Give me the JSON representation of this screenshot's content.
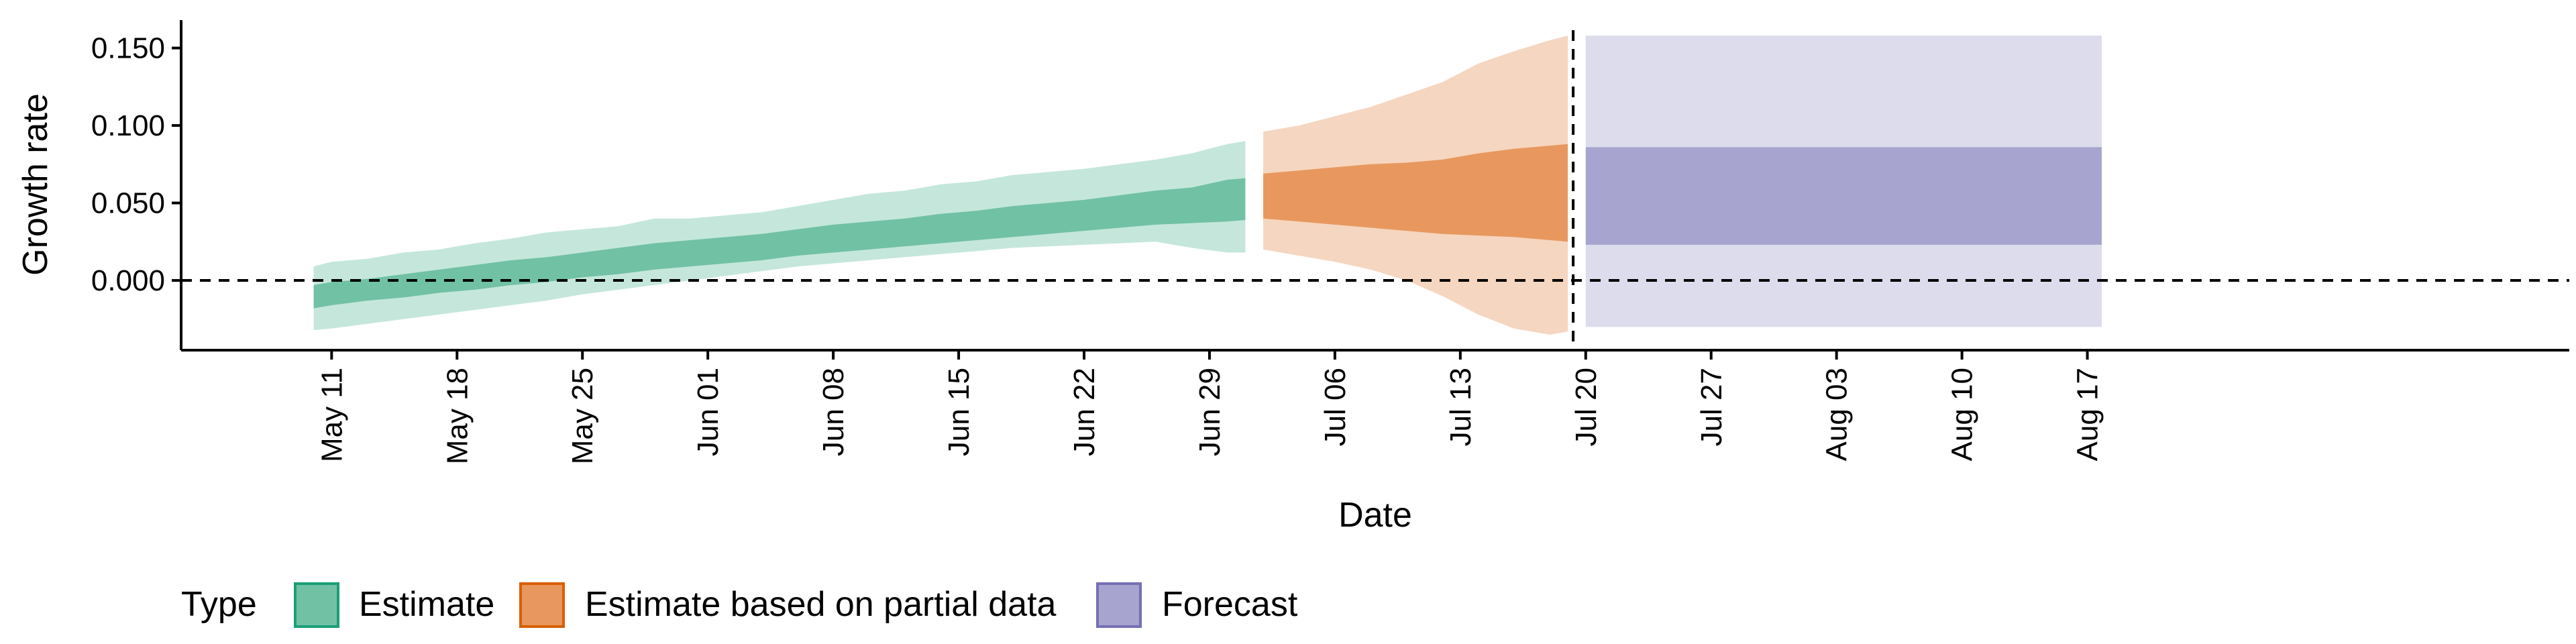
{
  "chart_data": {
    "type": "area",
    "title": "",
    "xlabel": "Date",
    "ylabel": "Growth rate",
    "ylim": [
      -0.045,
      0.168
    ],
    "yticks": [
      0.0,
      0.05,
      0.1,
      0.15
    ],
    "ytick_labels": [
      "0.000",
      "0.050",
      "0.100",
      "0.150"
    ],
    "xlim_days": [
      -8.4,
      124.9
    ],
    "x_origin": "May 11",
    "xticks_days": [
      0,
      7,
      14,
      21,
      28,
      35,
      42,
      49,
      56,
      63,
      70,
      77,
      84,
      91,
      98
    ],
    "xtick_labels": [
      "May 11",
      "May 18",
      "May 25",
      "Jun 01",
      "Jun 08",
      "Jun 15",
      "Jun 22",
      "Jun 29",
      "Jul 06",
      "Jul 13",
      "Jul 20",
      "Jul 27",
      "Aug 03",
      "Aug 10",
      "Aug 17"
    ],
    "reference_lines": {
      "horizontal_y": 0.0,
      "vertical_day": 69.3
    },
    "legend": {
      "title": "Type",
      "position": "bottom-left",
      "entries": [
        {
          "label": "Estimate",
          "fill": "#71c1a5",
          "stroke": "#1b9e77"
        },
        {
          "label": "Estimate based on partial data",
          "fill": "#e8985e",
          "stroke": "#d95f02"
        },
        {
          "label": "Forecast",
          "fill": "#a8a4d0",
          "stroke": "#7570b3"
        }
      ]
    },
    "series": [
      {
        "name": "Estimate",
        "color": "#1b9e77",
        "inner_fill": "#71c1a5",
        "outer_fill": "#c5e7db",
        "x_days": [
          -1,
          0,
          2,
          4,
          6,
          8,
          10,
          12,
          14,
          16,
          18,
          20,
          22,
          24,
          26,
          28,
          30,
          32,
          34,
          36,
          38,
          40,
          42,
          44,
          46,
          48,
          50,
          51
        ],
        "outer_upper": [
          0.009,
          0.012,
          0.014,
          0.018,
          0.02,
          0.024,
          0.027,
          0.031,
          0.033,
          0.035,
          0.04,
          0.04,
          0.042,
          0.044,
          0.048,
          0.052,
          0.056,
          0.058,
          0.062,
          0.064,
          0.068,
          0.07,
          0.072,
          0.075,
          0.078,
          0.082,
          0.088,
          0.09
        ],
        "inner_upper": [
          -0.003,
          -0.001,
          0.001,
          0.004,
          0.007,
          0.01,
          0.013,
          0.015,
          0.018,
          0.021,
          0.024,
          0.026,
          0.028,
          0.03,
          0.033,
          0.036,
          0.038,
          0.04,
          0.043,
          0.045,
          0.048,
          0.05,
          0.052,
          0.055,
          0.058,
          0.06,
          0.065,
          0.066
        ],
        "inner_lower": [
          -0.018,
          -0.016,
          -0.013,
          -0.011,
          -0.008,
          -0.006,
          -0.003,
          -0.001,
          0.002,
          0.004,
          0.007,
          0.009,
          0.011,
          0.013,
          0.016,
          0.018,
          0.02,
          0.022,
          0.024,
          0.026,
          0.028,
          0.03,
          0.032,
          0.034,
          0.036,
          0.037,
          0.038,
          0.039
        ],
        "outer_lower": [
          -0.032,
          -0.031,
          -0.028,
          -0.025,
          -0.022,
          -0.019,
          -0.016,
          -0.013,
          -0.009,
          -0.006,
          -0.003,
          0.0,
          0.003,
          0.006,
          0.009,
          0.011,
          0.013,
          0.015,
          0.017,
          0.019,
          0.021,
          0.022,
          0.023,
          0.024,
          0.025,
          0.021,
          0.018,
          0.018
        ]
      },
      {
        "name": "Estimate based on partial data",
        "color": "#d95f02",
        "inner_fill": "#e8985e",
        "outer_fill": "#f5d6c0",
        "x_days": [
          52,
          54,
          56,
          58,
          60,
          62,
          64,
          66,
          68,
          69
        ],
        "outer_upper": [
          0.096,
          0.1,
          0.106,
          0.112,
          0.12,
          0.128,
          0.14,
          0.148,
          0.155,
          0.158
        ],
        "inner_upper": [
          0.069,
          0.071,
          0.073,
          0.075,
          0.076,
          0.078,
          0.082,
          0.085,
          0.087,
          0.088
        ],
        "inner_lower": [
          0.04,
          0.038,
          0.036,
          0.034,
          0.032,
          0.03,
          0.029,
          0.028,
          0.026,
          0.025
        ],
        "outer_lower": [
          0.02,
          0.016,
          0.012,
          0.007,
          0.0,
          -0.01,
          -0.022,
          -0.031,
          -0.035,
          -0.033
        ]
      },
      {
        "name": "Forecast",
        "color": "#7570b3",
        "inner_fill": "#a8a4d0",
        "outer_fill": "#dddcec",
        "x_days": [
          70,
          98.8
        ],
        "outer_upper": [
          0.158,
          0.158
        ],
        "inner_upper": [
          0.086,
          0.086
        ],
        "inner_lower": [
          0.023,
          0.023
        ],
        "outer_lower": [
          -0.03,
          -0.03
        ]
      }
    ]
  }
}
